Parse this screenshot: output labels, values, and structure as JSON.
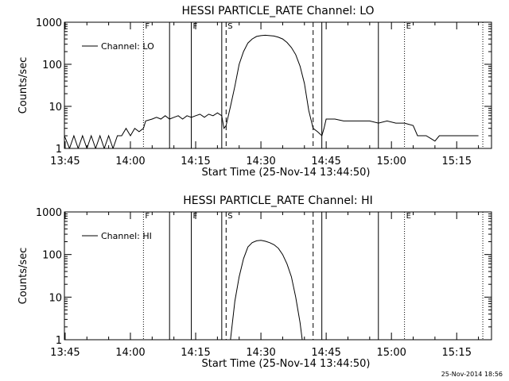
{
  "footer": {
    "timestamp": "25-Nov-2014 18:56"
  },
  "chart_data": [
    {
      "type": "line",
      "title": "HESSI PARTICLE_RATE Channel: LO",
      "xlabel": "Start Time (25-Nov-14 13:44:50)",
      "ylabel": "Counts/sec",
      "yscale": "log",
      "ylim": [
        1,
        1000
      ],
      "xlim": [
        "13:44:50",
        "15:23:00"
      ],
      "x_ticks": [
        "13:45",
        "14:00",
        "14:15",
        "14:30",
        "14:45",
        "15:00",
        "15:15"
      ],
      "y_ticks": [
        "1",
        "10",
        "100",
        "1000"
      ],
      "legend": {
        "position": "top-left",
        "entries": [
          "Channel: LO"
        ]
      },
      "markers": [
        {
          "time": "14:03",
          "style": "dotted",
          "label": "F"
        },
        {
          "time": "14:09",
          "style": "solid",
          "label": ""
        },
        {
          "time": "14:14",
          "style": "solid",
          "label": "F"
        },
        {
          "time": "14:21",
          "style": "solid",
          "label": ""
        },
        {
          "time": "14:22",
          "style": "dashed",
          "label": "S"
        },
        {
          "time": "14:42",
          "style": "dashed",
          "label": ""
        },
        {
          "time": "14:44",
          "style": "solid",
          "label": ""
        },
        {
          "time": "14:57",
          "style": "solid",
          "label": ""
        },
        {
          "time": "15:03",
          "style": "dotted",
          "label": "E"
        },
        {
          "time": "15:21",
          "style": "dotted",
          "label": ""
        }
      ],
      "series": [
        {
          "name": "Channel: LO",
          "points": [
            [
              "13:44:50",
              2
            ],
            [
              "13:46",
              1
            ],
            [
              "13:47",
              2
            ],
            [
              "13:48",
              1
            ],
            [
              "13:49",
              2
            ],
            [
              "13:50",
              1
            ],
            [
              "13:51",
              2
            ],
            [
              "13:52",
              1
            ],
            [
              "13:53",
              2
            ],
            [
              "13:54",
              1
            ],
            [
              "13:55",
              2
            ],
            [
              "13:56",
              1
            ],
            [
              "13:57",
              2
            ],
            [
              "13:58",
              2
            ],
            [
              "13:59",
              3
            ],
            [
              "14:00",
              2
            ],
            [
              "14:01",
              3
            ],
            [
              "14:02",
              2.5
            ],
            [
              "14:03",
              3
            ],
            [
              "14:03:30",
              4.5
            ],
            [
              "14:05",
              5
            ],
            [
              "14:06",
              5.5
            ],
            [
              "14:07",
              5
            ],
            [
              "14:08",
              6
            ],
            [
              "14:09",
              5
            ],
            [
              "14:10",
              5.5
            ],
            [
              "14:11",
              6
            ],
            [
              "14:12",
              5
            ],
            [
              "14:13",
              6
            ],
            [
              "14:14",
              5.5
            ],
            [
              "14:15",
              6
            ],
            [
              "14:16",
              6.5
            ],
            [
              "14:17",
              5.5
            ],
            [
              "14:18",
              6.5
            ],
            [
              "14:19",
              6
            ],
            [
              "14:20",
              7
            ],
            [
              "14:21",
              6
            ],
            [
              "14:21:30",
              3
            ],
            [
              "14:22",
              3.5
            ],
            [
              "14:23",
              10
            ],
            [
              "14:24",
              30
            ],
            [
              "14:25",
              100
            ],
            [
              "14:26",
              200
            ],
            [
              "14:27",
              320
            ],
            [
              "14:28",
              400
            ],
            [
              "14:29",
              460
            ],
            [
              "14:30",
              480
            ],
            [
              "14:31",
              490
            ],
            [
              "14:32",
              480
            ],
            [
              "14:33",
              470
            ],
            [
              "14:34",
              440
            ],
            [
              "14:35",
              400
            ],
            [
              "14:36",
              330
            ],
            [
              "14:37",
              250
            ],
            [
              "14:38",
              170
            ],
            [
              "14:39",
              90
            ],
            [
              "14:40",
              35
            ],
            [
              "14:41",
              8
            ],
            [
              "14:42",
              3
            ],
            [
              "14:43",
              2.5
            ],
            [
              "14:44",
              2
            ],
            [
              "14:44:30",
              3
            ],
            [
              "14:45",
              5
            ],
            [
              "14:47",
              5
            ],
            [
              "14:49",
              4.5
            ],
            [
              "14:51",
              4.5
            ],
            [
              "14:53",
              4.5
            ],
            [
              "14:55",
              4.5
            ],
            [
              "14:57",
              4
            ],
            [
              "14:59",
              4.5
            ],
            [
              "15:01",
              4
            ],
            [
              "15:03",
              4
            ],
            [
              "15:05",
              3.5
            ],
            [
              "15:06",
              2
            ],
            [
              "15:08",
              2
            ],
            [
              "15:10",
              1.5
            ],
            [
              "15:11",
              2
            ],
            [
              "15:13",
              2
            ],
            [
              "15:15",
              2
            ],
            [
              "15:18",
              2
            ],
            [
              "15:20",
              2
            ]
          ]
        }
      ]
    },
    {
      "type": "line",
      "title": "HESSI PARTICLE_RATE Channel: HI",
      "xlabel": "Start Time (25-Nov-14 13:44:50)",
      "ylabel": "Counts/sec",
      "yscale": "log",
      "ylim": [
        1,
        1000
      ],
      "xlim": [
        "13:44:50",
        "15:23:00"
      ],
      "x_ticks": [
        "13:45",
        "14:00",
        "14:15",
        "14:30",
        "14:45",
        "15:00",
        "15:15"
      ],
      "y_ticks": [
        "1",
        "10",
        "100",
        "1000"
      ],
      "legend": {
        "position": "top-left",
        "entries": [
          "Channel: HI"
        ]
      },
      "markers": [
        {
          "time": "14:03",
          "style": "dotted",
          "label": "F"
        },
        {
          "time": "14:09",
          "style": "solid",
          "label": ""
        },
        {
          "time": "14:14",
          "style": "solid",
          "label": "F"
        },
        {
          "time": "14:21",
          "style": "solid",
          "label": ""
        },
        {
          "time": "14:22",
          "style": "dashed",
          "label": "S"
        },
        {
          "time": "14:42",
          "style": "dashed",
          "label": ""
        },
        {
          "time": "14:44",
          "style": "solid",
          "label": ""
        },
        {
          "time": "14:57",
          "style": "solid",
          "label": ""
        },
        {
          "time": "15:03",
          "style": "dotted",
          "label": "E"
        },
        {
          "time": "15:21",
          "style": "dotted",
          "label": ""
        }
      ],
      "series": [
        {
          "name": "Channel: HI",
          "points": [
            [
              "14:23",
              1
            ],
            [
              "14:24",
              8
            ],
            [
              "14:25",
              30
            ],
            [
              "14:26",
              80
            ],
            [
              "14:27",
              150
            ],
            [
              "14:28",
              190
            ],
            [
              "14:29",
              210
            ],
            [
              "14:30",
              215
            ],
            [
              "14:31",
              205
            ],
            [
              "14:32",
              190
            ],
            [
              "14:33",
              170
            ],
            [
              "14:34",
              140
            ],
            [
              "14:35",
              100
            ],
            [
              "14:36",
              60
            ],
            [
              "14:37",
              30
            ],
            [
              "14:38",
              10
            ],
            [
              "14:39",
              2.5
            ],
            [
              "14:39:30",
              1
            ]
          ]
        }
      ]
    }
  ]
}
